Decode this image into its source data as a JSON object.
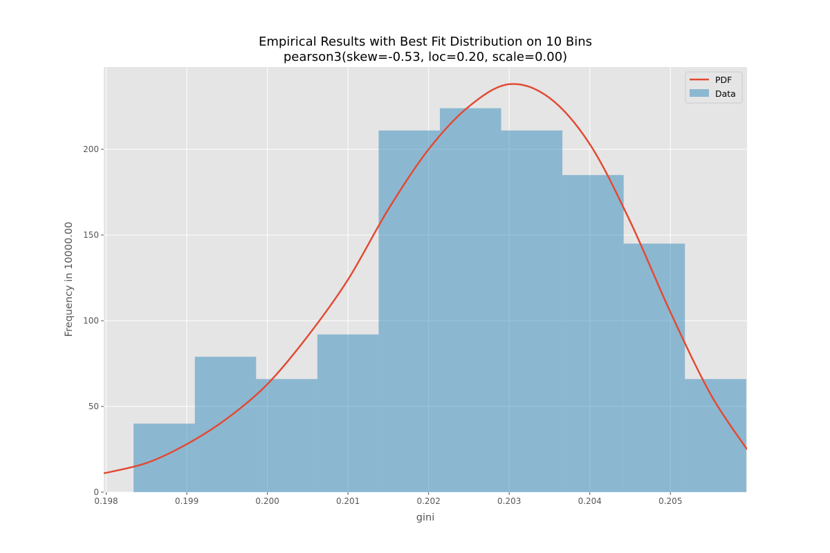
{
  "chart_data": {
    "type": "bar",
    "title": "Empirical Results with Best Fit Distribution on 10 Bins",
    "subtitle": "pearson3(skew=-0.53, loc=0.20, scale=0.00)",
    "xlabel": "gini",
    "ylabel": "Frequency in 10000.00",
    "xlim": [
      0.19797,
      0.20595
    ],
    "ylim": [
      0,
      248
    ],
    "xticks": [
      {
        "value": 0.198,
        "label": "0.198"
      },
      {
        "value": 0.199,
        "label": "0.199"
      },
      {
        "value": 0.2,
        "label": "0.200"
      },
      {
        "value": 0.201,
        "label": "0.201"
      },
      {
        "value": 0.202,
        "label": "0.202"
      },
      {
        "value": 0.203,
        "label": "0.203"
      },
      {
        "value": 0.204,
        "label": "0.204"
      },
      {
        "value": 0.205,
        "label": "0.205"
      }
    ],
    "yticks": [
      {
        "value": 0,
        "label": "0"
      },
      {
        "value": 50,
        "label": "50"
      },
      {
        "value": 100,
        "label": "100"
      },
      {
        "value": 150,
        "label": "150"
      },
      {
        "value": 200,
        "label": "200"
      }
    ],
    "grid": true,
    "legend_position": "top-right",
    "series": [
      {
        "name": "Data",
        "kind": "histogram",
        "color": "#348ABD",
        "opacity": 0.5,
        "bin_edges": [
          0.19834,
          0.1991,
          0.19986,
          0.20062,
          0.20138,
          0.20214,
          0.2029,
          0.20366,
          0.20442,
          0.20518,
          0.20594
        ],
        "values": [
          40,
          79,
          66,
          92,
          211,
          224,
          211,
          185,
          145,
          66
        ]
      },
      {
        "name": "PDF",
        "kind": "line",
        "color": "#E24A33",
        "x": [
          0.19797,
          0.1985,
          0.199,
          0.1995,
          0.2,
          0.2005,
          0.201,
          0.2015,
          0.202,
          0.2025,
          0.203,
          0.2035,
          0.204,
          0.2045,
          0.205,
          0.2055,
          0.20595
        ],
        "y": [
          11,
          17,
          28,
          43,
          63,
          91,
          124,
          165,
          200,
          225,
          238,
          230,
          203,
          158,
          105,
          57,
          25
        ]
      }
    ]
  }
}
